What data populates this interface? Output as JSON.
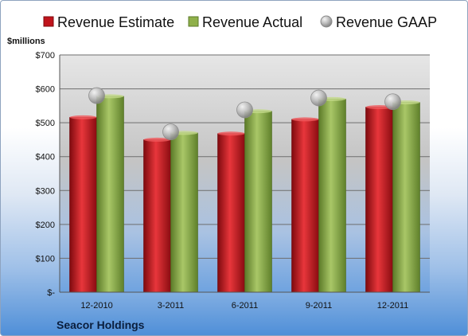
{
  "chart_data": {
    "type": "bar",
    "unit_label": "$millions",
    "footer": "Seacor Holdings",
    "categories": [
      "12-2010",
      "3-2011",
      "6-2011",
      "9-2011",
      "12-2011"
    ],
    "y_ticks": [
      "$-",
      "$100",
      "$200",
      "$300",
      "$400",
      "$500",
      "$600",
      "$700"
    ],
    "ylim": [
      0,
      700
    ],
    "grid": true,
    "legend_position": "top",
    "series": [
      {
        "name": "Revenue Estimate",
        "kind": "bar",
        "color": "#c0141c",
        "values": [
          516,
          450,
          468,
          510,
          546
        ]
      },
      {
        "name": "Revenue Actual",
        "kind": "bar",
        "color": "#8fb04a",
        "values": [
          578,
          470,
          534,
          570,
          560
        ]
      },
      {
        "name": "Revenue GAAP",
        "kind": "marker",
        "color": "#a8a8a8",
        "values": [
          580,
          473,
          538,
          573,
          562
        ]
      }
    ]
  }
}
